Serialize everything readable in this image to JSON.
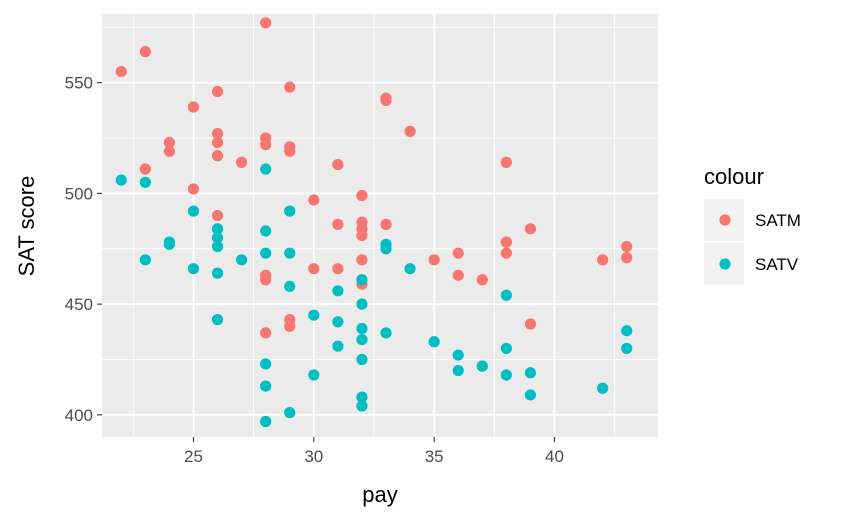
{
  "chart_data": {
    "type": "scatter",
    "title": "",
    "xlabel": "pay",
    "ylabel": "SAT score",
    "xlim": [
      21.2,
      44.3
    ],
    "ylim": [
      390,
      581
    ],
    "x_ticks": [
      25,
      30,
      35,
      40
    ],
    "x_tick_labels": [
      "25",
      "30",
      "35",
      "40"
    ],
    "y_ticks": [
      400,
      450,
      500,
      550
    ],
    "y_tick_labels": [
      "400",
      "450",
      "500",
      "550"
    ],
    "grid": true,
    "legend": {
      "title": "colour",
      "position": "right"
    },
    "series": [
      {
        "name": "SATM",
        "color": "#F8766D",
        "points": [
          [
            22,
            555
          ],
          [
            23,
            564
          ],
          [
            23,
            511
          ],
          [
            24,
            523
          ],
          [
            24,
            519
          ],
          [
            25,
            539
          ],
          [
            25,
            502
          ],
          [
            26,
            546
          ],
          [
            26,
            527
          ],
          [
            26,
            523
          ],
          [
            26,
            517
          ],
          [
            26,
            490
          ],
          [
            27,
            514
          ],
          [
            28,
            577
          ],
          [
            28,
            525
          ],
          [
            28,
            522
          ],
          [
            28,
            463
          ],
          [
            28,
            461
          ],
          [
            28,
            437
          ],
          [
            29,
            548
          ],
          [
            29,
            521
          ],
          [
            29,
            519
          ],
          [
            29,
            443
          ],
          [
            29,
            440
          ],
          [
            30,
            497
          ],
          [
            30,
            466
          ],
          [
            31,
            513
          ],
          [
            31,
            486
          ],
          [
            31,
            466
          ],
          [
            32,
            499
          ],
          [
            32,
            487
          ],
          [
            32,
            484
          ],
          [
            32,
            481
          ],
          [
            32,
            470
          ],
          [
            32,
            459
          ],
          [
            33,
            543
          ],
          [
            33,
            542
          ],
          [
            33,
            486
          ],
          [
            34,
            528
          ],
          [
            35,
            470
          ],
          [
            36,
            473
          ],
          [
            36,
            463
          ],
          [
            37,
            461
          ],
          [
            38,
            514
          ],
          [
            38,
            478
          ],
          [
            38,
            473
          ],
          [
            39,
            484
          ],
          [
            39,
            441
          ],
          [
            42,
            470
          ],
          [
            43,
            476
          ],
          [
            43,
            471
          ]
        ]
      },
      {
        "name": "SATV",
        "color": "#00BFC4",
        "points": [
          [
            22,
            506
          ],
          [
            23,
            505
          ],
          [
            23,
            470
          ],
          [
            24,
            478
          ],
          [
            24,
            477
          ],
          [
            25,
            492
          ],
          [
            25,
            466
          ],
          [
            26,
            484
          ],
          [
            26,
            480
          ],
          [
            26,
            476
          ],
          [
            26,
            464
          ],
          [
            26,
            443
          ],
          [
            27,
            470
          ],
          [
            28,
            511
          ],
          [
            28,
            483
          ],
          [
            28,
            473
          ],
          [
            28,
            423
          ],
          [
            28,
            413
          ],
          [
            28,
            397
          ],
          [
            29,
            492
          ],
          [
            29,
            473
          ],
          [
            29,
            458
          ],
          [
            29,
            401
          ],
          [
            30,
            445
          ],
          [
            30,
            418
          ],
          [
            31,
            456
          ],
          [
            31,
            442
          ],
          [
            31,
            431
          ],
          [
            32,
            461
          ],
          [
            32,
            450
          ],
          [
            32,
            439
          ],
          [
            32,
            434
          ],
          [
            32,
            425
          ],
          [
            32,
            408
          ],
          [
            32,
            404
          ],
          [
            33,
            477
          ],
          [
            33,
            475
          ],
          [
            33,
            437
          ],
          [
            34,
            466
          ],
          [
            35,
            433
          ],
          [
            36,
            427
          ],
          [
            36,
            420
          ],
          [
            37,
            422
          ],
          [
            38,
            454
          ],
          [
            38,
            430
          ],
          [
            38,
            418
          ],
          [
            39,
            419
          ],
          [
            39,
            409
          ],
          [
            42,
            412
          ],
          [
            43,
            438
          ],
          [
            43,
            430
          ]
        ]
      }
    ]
  }
}
